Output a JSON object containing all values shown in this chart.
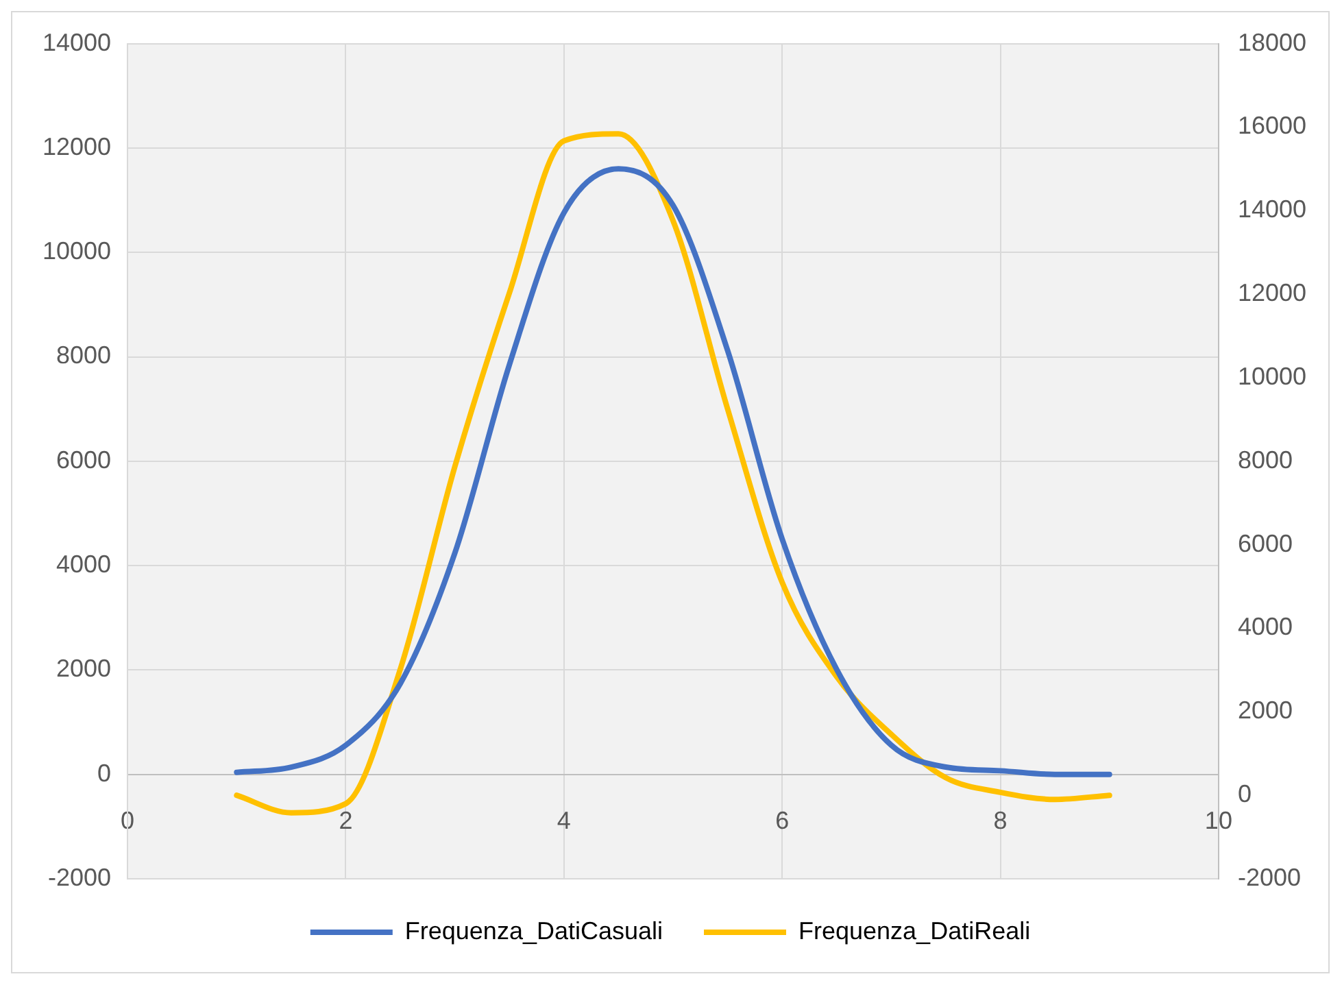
{
  "chart_data": {
    "type": "line",
    "x": [
      1,
      1.5,
      2,
      2.5,
      3,
      3.5,
      4,
      4.5,
      5,
      5.5,
      6,
      6.5,
      7,
      7.5,
      8,
      8.5,
      9
    ],
    "series": [
      {
        "name": "Frequenza_DatiCasuali",
        "color": "#4472c4",
        "values": [
          40,
          140,
          560,
          1740,
          4240,
          7850,
          10760,
          11600,
          10900,
          8120,
          4510,
          2010,
          560,
          140,
          70,
          0,
          0
        ]
      },
      {
        "name": "Frequenza_DatiReali",
        "color": "#ffc000",
        "axis": "y2",
        "values": [
          0,
          -420,
          -200,
          3020,
          7870,
          12030,
          15670,
          15840,
          13760,
          9250,
          5100,
          2840,
          1460,
          420,
          70,
          -100,
          0
        ]
      }
    ],
    "xlim": [
      0,
      10
    ],
    "xticks": [
      0,
      2,
      4,
      6,
      8,
      10
    ],
    "ylim": [
      -2000,
      14000
    ],
    "yticks": [
      -2000,
      0,
      2000,
      4000,
      6000,
      8000,
      10000,
      12000,
      14000
    ],
    "y2lim": [
      -2000,
      18000
    ],
    "y2ticks": [
      -2000,
      0,
      2000,
      4000,
      6000,
      8000,
      10000,
      12000,
      14000,
      16000,
      18000
    ],
    "grid": true,
    "legend": "bottom",
    "marker": "none",
    "line_style": "solid"
  }
}
